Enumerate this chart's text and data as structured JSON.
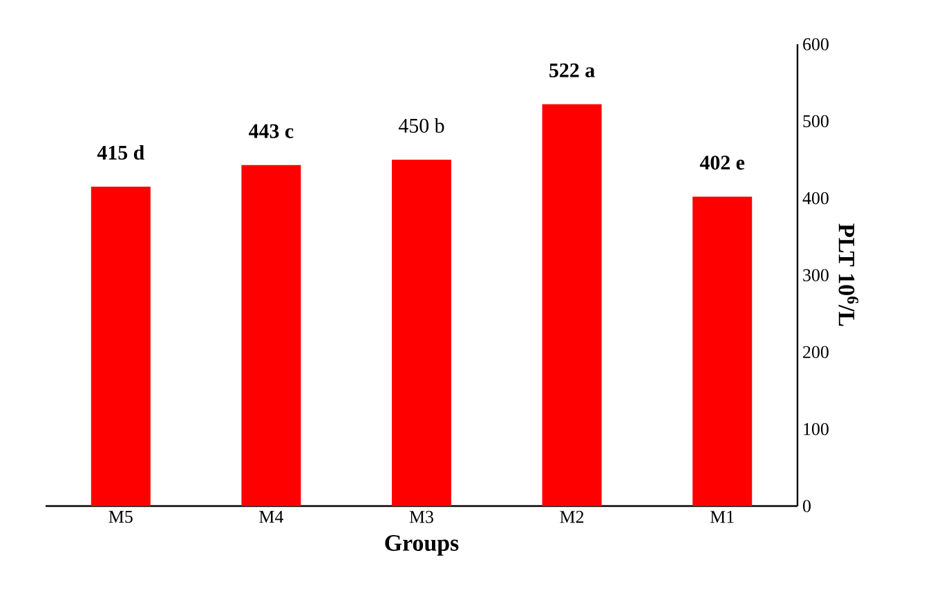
{
  "chart_data": {
    "type": "bar",
    "xlabel": "Groups",
    "ylabel": "PLT 10$^{6}$/L",
    "categories": [
      "M5",
      "M4",
      "M3",
      "M2",
      "M1"
    ],
    "values": [
      415,
      443,
      450,
      522,
      402
    ],
    "value_labels": [
      "**415 d**",
      "**443 c**",
      "450 b",
      "**522 a**",
      "**402 e**"
    ],
    "color": "#ff0000",
    "ylim": [
      0,
      600
    ],
    "yticks": [
      0,
      100,
      200,
      300,
      400,
      500,
      600
    ]
  }
}
